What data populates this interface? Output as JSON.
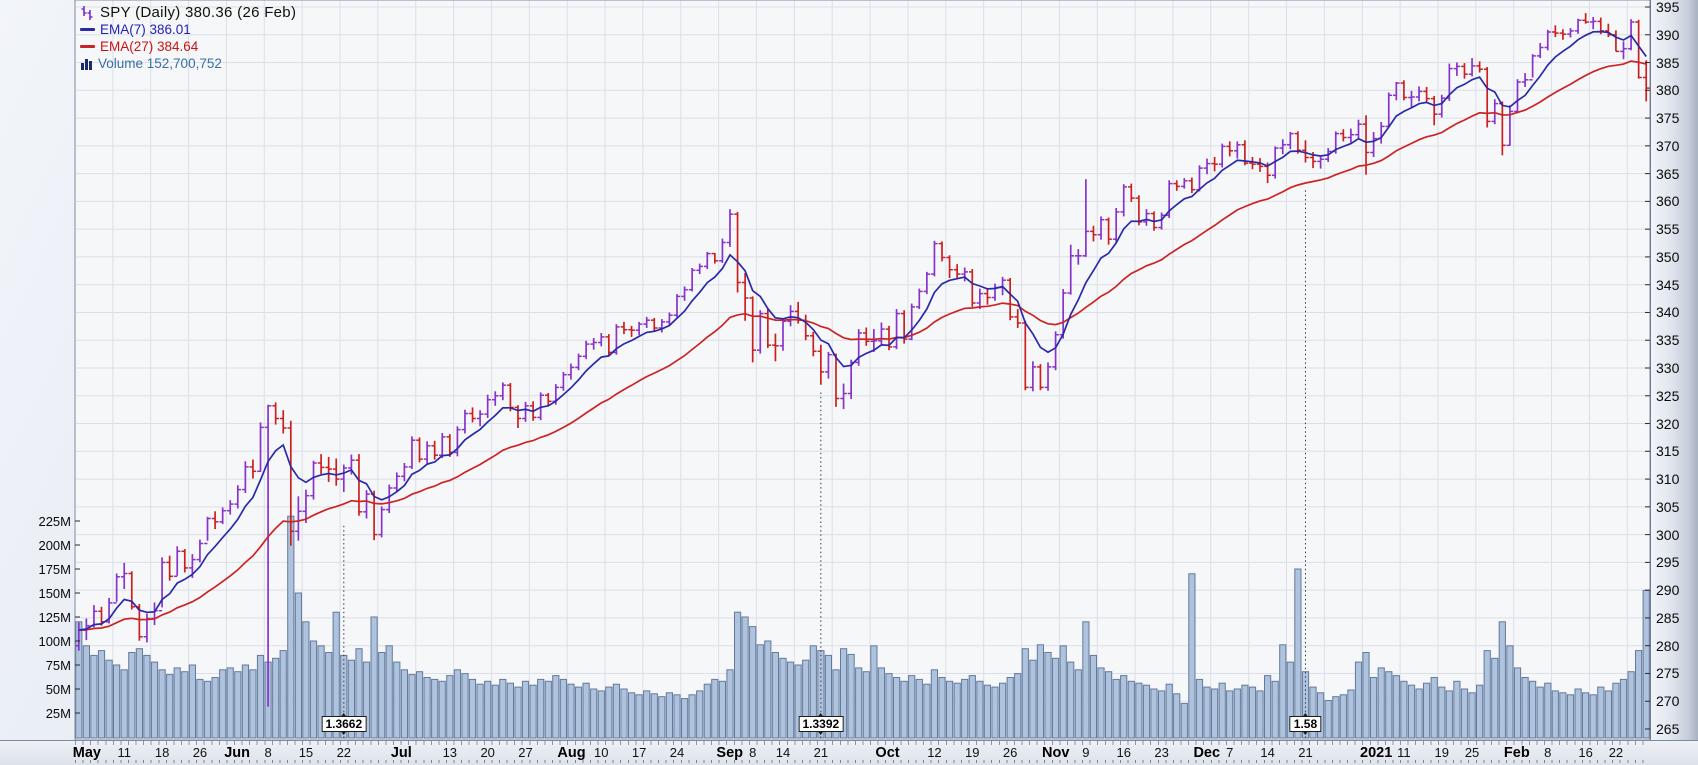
{
  "legend": {
    "title": "SPY (Daily) 380.36 (26 Feb)",
    "ema7": "EMA(7) 386.01",
    "ema27": "EMA(27) 384.64",
    "volume": "Volume 152,700,752"
  },
  "chart_data": {
    "type": "ohlc-with-volume",
    "symbol": "SPY",
    "timeframe": "Daily",
    "last_close": 380.36,
    "last_date": "26 Feb",
    "overlays": [
      {
        "name": "EMA(7)",
        "value": 386.01
      },
      {
        "name": "EMA(27)",
        "value": 384.64
      }
    ],
    "last_volume": "152,700,752",
    "price_axis": {
      "min": 265,
      "max": 395,
      "step": 5,
      "side": "right"
    },
    "volume_axis": {
      "values_m": [
        225,
        200,
        175,
        150,
        125,
        100,
        75,
        50,
        25
      ],
      "side": "left"
    },
    "x_axis_labels": [
      {
        "t": "May",
        "i": 0,
        "b": true
      },
      {
        "t": "11",
        "i": 6,
        "b": false
      },
      {
        "t": "18",
        "i": 11,
        "b": false
      },
      {
        "t": "26",
        "i": 16,
        "b": false
      },
      {
        "t": "Jun",
        "i": 20,
        "b": true
      },
      {
        "t": "8",
        "i": 25,
        "b": false
      },
      {
        "t": "15",
        "i": 30,
        "b": false
      },
      {
        "t": "22",
        "i": 35,
        "b": false
      },
      {
        "t": "Jul",
        "i": 42,
        "b": true
      },
      {
        "t": "13",
        "i": 49,
        "b": false
      },
      {
        "t": "20",
        "i": 54,
        "b": false
      },
      {
        "t": "27",
        "i": 59,
        "b": false
      },
      {
        "t": "Aug",
        "i": 64,
        "b": true
      },
      {
        "t": "10",
        "i": 69,
        "b": false
      },
      {
        "t": "17",
        "i": 74,
        "b": false
      },
      {
        "t": "24",
        "i": 79,
        "b": false
      },
      {
        "t": "Sep",
        "i": 85,
        "b": true
      },
      {
        "t": "8",
        "i": 89,
        "b": false
      },
      {
        "t": "14",
        "i": 93,
        "b": false
      },
      {
        "t": "21",
        "i": 98,
        "b": false
      },
      {
        "t": "Oct",
        "i": 106,
        "b": true
      },
      {
        "t": "12",
        "i": 113,
        "b": false
      },
      {
        "t": "19",
        "i": 118,
        "b": false
      },
      {
        "t": "26",
        "i": 123,
        "b": false
      },
      {
        "t": "Nov",
        "i": 128,
        "b": true
      },
      {
        "t": "9",
        "i": 133,
        "b": false
      },
      {
        "t": "16",
        "i": 138,
        "b": false
      },
      {
        "t": "23",
        "i": 143,
        "b": false
      },
      {
        "t": "Dec",
        "i": 148,
        "b": true
      },
      {
        "t": "7",
        "i": 152,
        "b": false
      },
      {
        "t": "14",
        "i": 157,
        "b": false
      },
      {
        "t": "21",
        "i": 162,
        "b": false
      },
      {
        "t": "2021",
        "i": 170,
        "b": true
      },
      {
        "t": "11",
        "i": 175,
        "b": false
      },
      {
        "t": "19",
        "i": 180,
        "b": false
      },
      {
        "t": "25",
        "i": 184,
        "b": false
      },
      {
        "t": "Feb",
        "i": 189,
        "b": true
      },
      {
        "t": "8",
        "i": 194,
        "b": false
      },
      {
        "t": "16",
        "i": 199,
        "b": false
      },
      {
        "t": "22",
        "i": 203,
        "b": false
      }
    ],
    "first_open": 280.0,
    "closes": [
      282.8,
      283.6,
      286.2,
      284.3,
      287.7,
      292.4,
      293.0,
      287.0,
      281.6,
      284.9,
      286.3,
      295.0,
      292.5,
      297.0,
      294.0,
      295.5,
      298.4,
      302.9,
      302.3,
      304.3,
      305.5,
      308.1,
      312.2,
      311.4,
      319.3,
      323.2,
      320.9,
      319.2,
      300.6,
      304.2,
      307.0,
      312.9,
      312.1,
      311.8,
      310.0,
      312.0,
      313.4,
      304.1,
      307.3,
      300.0,
      304.5,
      308.4,
      310.5,
      312.2,
      317.0,
      313.6,
      316.0,
      314.3,
      317.6,
      314.8,
      318.9,
      321.8,
      320.9,
      321.7,
      324.3,
      325.0,
      326.9,
      322.9,
      320.9,
      323.2,
      321.1,
      325.1,
      324.0,
      326.5,
      328.8,
      330.1,
      332.1,
      334.3,
      334.6,
      335.6,
      332.8,
      337.4,
      336.9,
      336.8,
      337.9,
      338.6,
      337.2,
      338.3,
      339.5,
      342.9,
      344.1,
      347.6,
      348.3,
      350.6,
      349.3,
      352.6,
      357.7,
      345.4,
      342.6,
      333.2,
      339.8,
      334.1,
      334.0,
      338.4,
      340.2,
      338.6,
      335.8,
      333.0,
      329.3,
      332.4,
      324.5,
      325.4,
      331.0,
      336.3,
      334.8,
      334.9,
      337.0,
      333.8,
      339.8,
      335.2,
      341.0,
      343.8,
      346.9,
      352.4,
      349.9,
      347.7,
      346.9,
      347.3,
      341.7,
      343.4,
      342.7,
      344.5,
      345.8,
      339.2,
      338.1,
      326.5,
      330.2,
      326.5,
      330.2,
      336.0,
      343.5,
      350.2,
      350.2,
      354.6,
      354.0,
      356.7,
      353.2,
      358.1,
      362.6,
      360.6,
      356.3,
      357.8,
      355.3,
      357.5,
      363.2,
      362.7,
      363.7,
      362.1,
      366.0,
      366.8,
      366.7,
      369.9,
      369.1,
      370.2,
      366.9,
      366.7,
      366.3,
      364.7,
      369.6,
      370.2,
      372.2,
      369.2,
      367.9,
      367.2,
      367.6,
      369.0,
      372.2,
      371.5,
      372.0,
      373.9,
      368.8,
      371.3,
      373.5,
      379.1,
      381.3,
      378.7,
      378.8,
      379.8,
      378.5,
      375.7,
      378.6,
      383.9,
      384.3,
      382.9,
      384.4,
      383.8,
      374.4,
      377.6,
      370.1,
      376.2,
      381.5,
      381.9,
      386.2,
      387.7,
      390.5,
      390.3,
      390.1,
      390.7,
      392.6,
      392.3,
      392.4,
      390.7,
      390.0,
      387.0,
      387.5,
      392.3,
      382.3,
      380.4
    ],
    "highs": [
      284.2,
      284.9,
      287.3,
      287.0,
      288.6,
      293.0,
      294.9,
      293.4,
      287.5,
      285.8,
      287.8,
      295.9,
      296.2,
      297.9,
      297.4,
      296.5,
      299.1,
      303.2,
      304.2,
      304.9,
      306.2,
      308.9,
      313.2,
      313.5,
      320.2,
      323.4,
      323.8,
      322.4,
      320.5,
      306.9,
      308.1,
      313.3,
      314.5,
      314.0,
      313.7,
      312.6,
      314.4,
      314.5,
      308.0,
      307.9,
      305.1,
      309.0,
      311.2,
      312.9,
      317.7,
      317.5,
      316.8,
      316.9,
      318.3,
      318.1,
      319.5,
      322.5,
      322.9,
      322.4,
      325.2,
      325.8,
      327.4,
      327.3,
      323.3,
      323.9,
      324.0,
      325.6,
      325.5,
      327.1,
      329.3,
      330.8,
      332.6,
      334.9,
      335.4,
      336.3,
      336.1,
      337.9,
      338.3,
      337.6,
      338.3,
      339.2,
      339.0,
      338.8,
      340.0,
      343.3,
      344.7,
      348.0,
      348.8,
      350.9,
      350.7,
      353.3,
      358.6,
      358.1,
      347.1,
      342.9,
      340.4,
      340.6,
      336.2,
      339.0,
      341.3,
      341.9,
      339.6,
      336.5,
      334.2,
      332.9,
      332.6,
      327.2,
      331.5,
      337.0,
      337.3,
      337.0,
      338.2,
      337.6,
      340.6,
      340.4,
      341.6,
      344.3,
      347.3,
      352.9,
      352.8,
      350.3,
      348.7,
      348.1,
      347.8,
      344.3,
      344.4,
      345.2,
      346.4,
      346.2,
      340.6,
      338.5,
      331.2,
      330.7,
      331.0,
      336.6,
      344.2,
      352.2,
      351.4,
      364.0,
      355.6,
      357.3,
      357.1,
      358.8,
      363.1,
      363.2,
      361.1,
      358.6,
      358.2,
      358.0,
      363.8,
      363.8,
      364.2,
      364.3,
      366.5,
      367.7,
      368.0,
      370.4,
      370.8,
      370.8,
      371.0,
      368.0,
      367.8,
      367.0,
      369.9,
      371.2,
      372.5,
      372.6,
      371.0,
      368.9,
      368.3,
      369.6,
      372.6,
      373.0,
      373.1,
      374.7,
      375.5,
      372.5,
      374.3,
      379.6,
      381.5,
      381.8,
      379.9,
      380.7,
      380.6,
      379.0,
      379.2,
      384.8,
      385.0,
      384.9,
      385.8,
      385.2,
      384.2,
      378.4,
      378.0,
      377.3,
      382.0,
      383.1,
      386.5,
      388.5,
      390.9,
      391.7,
      391.0,
      391.2,
      392.9,
      393.9,
      393.2,
      393.1,
      392.0,
      390.8,
      388.8,
      392.8,
      392.7,
      385.4
    ],
    "lows": [
      279.1,
      281.0,
      283.3,
      283.6,
      284.0,
      287.9,
      290.2,
      286.5,
      280.9,
      280.6,
      283.7,
      286.9,
      291.7,
      292.6,
      293.2,
      292.2,
      295.0,
      298.9,
      301.0,
      301.9,
      303.6,
      304.7,
      307.5,
      310.1,
      311.3,
      269.0,
      319.8,
      318.2,
      298.0,
      298.9,
      302.1,
      306.3,
      310.9,
      309.5,
      308.8,
      307.7,
      310.8,
      303.4,
      302.9,
      299.0,
      299.5,
      303.9,
      307.8,
      309.6,
      311.8,
      313.0,
      312.8,
      313.5,
      313.8,
      314.0,
      314.1,
      318.2,
      320.2,
      319.5,
      321.0,
      323.2,
      324.2,
      322.2,
      319.2,
      320.3,
      320.5,
      320.6,
      323.1,
      323.4,
      325.9,
      327.9,
      329.6,
      331.6,
      333.3,
      333.9,
      332.2,
      332.4,
      336.1,
      335.6,
      335.9,
      337.2,
      336.5,
      336.4,
      337.6,
      339.1,
      342.1,
      343.8,
      346.9,
      347.8,
      348.8,
      348.9,
      351.8,
      343.6,
      338.5,
      331.0,
      332.6,
      333.6,
      331.2,
      333.1,
      337.5,
      338.0,
      335.0,
      332.1,
      327.0,
      328.1,
      323.0,
      322.6,
      324.4,
      330.4,
      334.0,
      332.9,
      334.3,
      333.2,
      333.4,
      334.4,
      335.0,
      340.6,
      343.3,
      346.5,
      349.2,
      346.2,
      346.1,
      345.6,
      341.0,
      340.6,
      341.4,
      342.1,
      343.1,
      338.6,
      337.2,
      326.0,
      325.8,
      326.0,
      325.9,
      329.6,
      335.3,
      343.2,
      348.6,
      350.0,
      352.8,
      353.1,
      352.2,
      352.6,
      357.3,
      359.9,
      355.7,
      355.6,
      354.7,
      354.9,
      357.0,
      361.9,
      362.3,
      361.5,
      361.8,
      364.9,
      365.4,
      366.1,
      368.1,
      367.7,
      366.5,
      365.8,
      365.3,
      363.3,
      364.1,
      368.5,
      369.4,
      368.6,
      367.0,
      366.0,
      365.9,
      367.1,
      368.6,
      370.8,
      370.6,
      371.3,
      364.8,
      368.0,
      370.4,
      373.3,
      378.2,
      378.2,
      377.0,
      378.0,
      377.9,
      373.7,
      375.1,
      378.1,
      382.6,
      382.1,
      382.5,
      383.2,
      373.3,
      373.9,
      368.3,
      370.0,
      376.0,
      380.6,
      382.3,
      385.8,
      387.2,
      389.6,
      389.1,
      389.5,
      390.2,
      392.0,
      391.0,
      390.1,
      389.6,
      387.0,
      385.6,
      387.2,
      382.1,
      378.0
    ],
    "volumes_m": [
      120,
      95,
      85,
      90,
      80,
      75,
      70,
      88,
      92,
      85,
      78,
      70,
      65,
      72,
      68,
      75,
      60,
      58,
      62,
      70,
      72,
      68,
      75,
      70,
      85,
      78,
      82,
      90,
      230,
      150,
      120,
      100,
      95,
      88,
      130,
      85,
      80,
      92,
      78,
      125,
      88,
      95,
      78,
      70,
      65,
      68,
      62,
      60,
      58,
      64,
      70,
      66,
      60,
      55,
      58,
      54,
      60,
      56,
      52,
      58,
      54,
      60,
      58,
      64,
      60,
      55,
      52,
      56,
      50,
      48,
      52,
      55,
      50,
      46,
      44,
      48,
      45,
      42,
      46,
      44,
      40,
      44,
      48,
      55,
      60,
      58,
      70,
      130,
      125,
      115,
      96,
      100,
      88,
      82,
      78,
      75,
      80,
      95,
      90,
      85,
      70,
      92,
      86,
      72,
      68,
      95,
      72,
      66,
      62,
      58,
      64,
      60,
      55,
      70,
      62,
      58,
      56,
      60,
      64,
      58,
      54,
      52,
      56,
      62,
      66,
      92,
      80,
      96,
      88,
      82,
      95,
      78,
      70,
      120,
      85,
      72,
      68,
      60,
      64,
      58,
      56,
      54,
      50,
      48,
      55,
      45,
      35,
      170,
      60,
      52,
      50,
      56,
      48,
      50,
      54,
      52,
      48,
      64,
      58,
      96,
      78,
      175,
      68,
      52,
      46,
      38,
      42,
      44,
      49,
      78,
      88,
      62,
      72,
      68,
      64,
      58,
      54,
      50,
      56,
      62,
      52,
      48,
      58,
      50,
      46,
      54,
      90,
      82,
      120,
      95,
      72,
      62,
      58,
      52,
      56,
      48,
      46,
      44,
      50,
      46,
      44,
      52,
      48,
      56,
      60,
      68,
      90,
      152.7
    ],
    "annotations": [
      {
        "label": "1.3662",
        "day_index": 35,
        "top_price": 302
      },
      {
        "label": "1.3392",
        "day_index": 98,
        "top_price": 326
      },
      {
        "label": "1.58",
        "day_index": 162,
        "top_price": 362
      }
    ],
    "colors": {
      "up": "#8833cc",
      "down": "#cc2020",
      "ema7": "#2a2aa8",
      "ema27": "#cc2424",
      "volume_fill": "#aec3de",
      "volume_stroke": "#64799b",
      "grid": "#dcdfe8",
      "plot_bg": "#f6f7f9",
      "plot_border": "#7f8aa0"
    }
  }
}
